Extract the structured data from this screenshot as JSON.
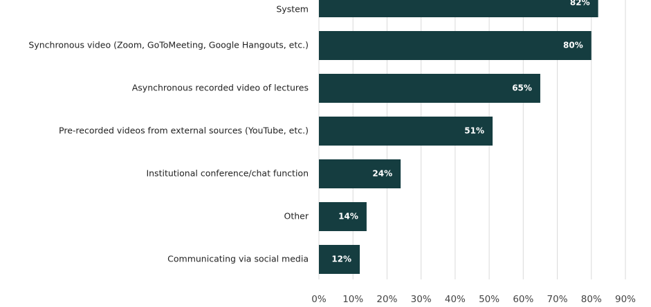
{
  "chart_data": {
    "type": "bar",
    "orientation": "horizontal",
    "color": "#153d40",
    "grid": true,
    "categories": [
      "System",
      "Synchronous video (Zoom, GoToMeeting, Google Hangouts, etc.)",
      "Asynchronous  recorded video of lectures",
      "Pre-recorded  videos from external sources (YouTube,  etc.)",
      "Institutional  conference/chat function",
      "Other",
      "Communicating via social media"
    ],
    "values": [
      82,
      80,
      65,
      51,
      24,
      14,
      12
    ],
    "value_labels": [
      "82%",
      "80%",
      "65%",
      "51%",
      "24%",
      "14%",
      "12%"
    ],
    "xlim": [
      0,
      90
    ],
    "xticks": [
      {
        "value": 0,
        "label": "0%"
      },
      {
        "value": 10,
        "label": "10%"
      },
      {
        "value": 20,
        "label": "20%"
      },
      {
        "value": 30,
        "label": "30%"
      },
      {
        "value": 40,
        "label": "40%"
      },
      {
        "value": 50,
        "label": "50%"
      },
      {
        "value": 60,
        "label": "60%"
      },
      {
        "value": 70,
        "label": "70%"
      },
      {
        "value": 80,
        "label": "80%"
      },
      {
        "value": 90,
        "label": "90%"
      }
    ]
  }
}
